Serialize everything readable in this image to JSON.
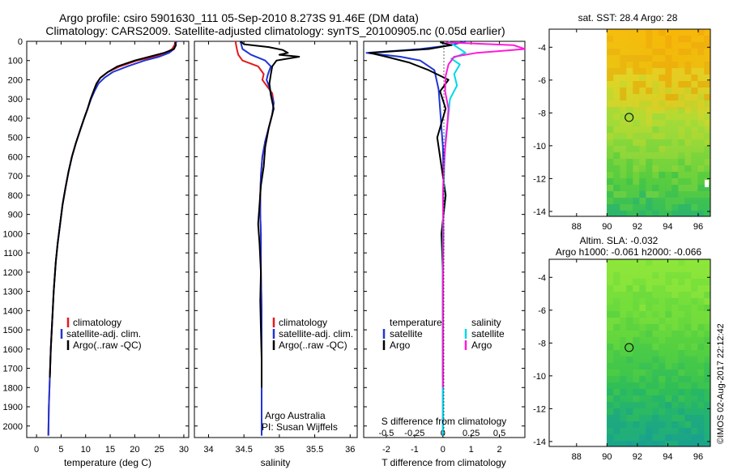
{
  "figure": {
    "title_line1": "Argo profile: csiro 5901630_111 05-Sep-2010 8.273S 91.46E (DM data)",
    "title_line2": "Climatology: CARS2009. Satellite-adjusted climatology: synTS_20100905.nc (0.05d earlier)",
    "credit": "©IMOS 02-Aug-2017 22:12:42"
  },
  "colors": {
    "climatology": "#e41a1c",
    "satellite_adj": "#1f35d6",
    "argo": "#000000",
    "sat_salinity": "#00d8e8",
    "argo_salinity": "#ff1ad9"
  },
  "chart_data": [
    {
      "type": "line",
      "id": "temperature",
      "xlabel": "temperature (deg C)",
      "ylabel": "",
      "xlim": [
        -2,
        31
      ],
      "ylim": [
        2060,
        0
      ],
      "xticks": [
        0,
        5,
        10,
        15,
        20,
        25,
        30
      ],
      "yticks": [
        0,
        100,
        200,
        300,
        400,
        500,
        600,
        700,
        800,
        900,
        1000,
        1100,
        1200,
        1300,
        1400,
        1500,
        1600,
        1700,
        1800,
        1900,
        2000
      ],
      "legend": [
        "climatology",
        "satellite-adj. clim.",
        "Argo(..raw -QC)"
      ],
      "legend_position": "lower-center",
      "series": [
        {
          "name": "climatology",
          "color_key": "climatology",
          "x": [
            28.3,
            28.1,
            27.6,
            26.5,
            24.0,
            20.5,
            17.0,
            14.5,
            13.0,
            12.2,
            11.6,
            11.0,
            10.4,
            9.7,
            8.9,
            8.0,
            7.2,
            6.5,
            5.9,
            5.3,
            4.8,
            4.3,
            3.9,
            3.5,
            3.2,
            2.9,
            2.7,
            2.5,
            2.4
          ],
          "y": [
            0,
            20,
            40,
            60,
            80,
            100,
            130,
            160,
            190,
            220,
            260,
            300,
            350,
            400,
            460,
            530,
            600,
            680,
            760,
            850,
            950,
            1050,
            1150,
            1300,
            1450,
            1600,
            1750,
            1900,
            2050
          ]
        },
        {
          "name": "satellite-adj. clim.",
          "color_key": "satellite_adj",
          "x": [
            28.5,
            28.3,
            28.0,
            27.0,
            25.0,
            22.0,
            18.5,
            15.5,
            13.8,
            12.6,
            11.8,
            11.1,
            10.4,
            9.7,
            8.9,
            8.0,
            7.2,
            6.5,
            5.9,
            5.3,
            4.8,
            4.3,
            3.9,
            3.5,
            3.2,
            2.9,
            2.7,
            2.5,
            2.4
          ],
          "y": [
            0,
            20,
            40,
            60,
            80,
            100,
            130,
            160,
            190,
            220,
            260,
            300,
            350,
            400,
            460,
            530,
            600,
            680,
            760,
            850,
            950,
            1050,
            1150,
            1300,
            1450,
            1600,
            1750,
            1900,
            2050
          ]
        },
        {
          "name": "Argo(..raw -QC)",
          "color_key": "argo",
          "x": [
            28.2,
            28.4,
            28.0,
            26.0,
            23.0,
            20.0,
            16.5,
            14.5,
            13.0,
            12.2,
            11.6,
            11.0,
            10.4,
            9.7,
            8.9,
            8.0,
            7.2,
            6.5,
            5.9,
            5.3,
            4.8,
            4.3,
            3.9,
            3.5,
            3.2,
            2.9,
            2.7
          ],
          "y": [
            5,
            20,
            40,
            60,
            80,
            100,
            130,
            160,
            190,
            220,
            260,
            300,
            350,
            400,
            460,
            530,
            600,
            680,
            760,
            850,
            950,
            1050,
            1150,
            1300,
            1450,
            1600,
            1750
          ]
        }
      ]
    },
    {
      "type": "line",
      "id": "salinity",
      "xlabel": "salinity",
      "xlim": [
        33.8,
        36.1
      ],
      "ylim": [
        2060,
        0
      ],
      "xticks": [
        34,
        34.5,
        35,
        35.5,
        36
      ],
      "yticks": [
        0,
        100,
        200,
        300,
        400,
        500,
        600,
        700,
        800,
        900,
        1000,
        1100,
        1200,
        1300,
        1400,
        1500,
        1600,
        1700,
        1800,
        1900,
        2000
      ],
      "legend": [
        "climatology",
        "satellite-adj. clim.",
        "Argo(..raw -QC)"
      ],
      "legend_position": "lower-right",
      "annotations": [
        "Argo Australia",
        "PI: Susan Wijffels"
      ],
      "series": [
        {
          "name": "climatology",
          "color_key": "climatology",
          "x": [
            34.38,
            34.4,
            34.42,
            34.48,
            34.7,
            34.78,
            34.76,
            34.82,
            34.9,
            34.92,
            34.9,
            34.85,
            34.8,
            34.76,
            34.74,
            34.73,
            34.73,
            34.74,
            34.74,
            34.75,
            34.75,
            34.75,
            34.75
          ],
          "y": [
            0,
            40,
            70,
            100,
            130,
            170,
            200,
            230,
            270,
            320,
            380,
            450,
            520,
            600,
            700,
            800,
            900,
            1000,
            1200,
            1400,
            1600,
            1800,
            2050
          ]
        },
        {
          "name": "satellite-adj. clim.",
          "color_key": "satellite_adj",
          "x": [
            34.45,
            34.48,
            34.6,
            34.8,
            34.88,
            34.84,
            34.82,
            34.85,
            34.88,
            34.92,
            34.9,
            34.85,
            34.8,
            34.76,
            34.74,
            34.73,
            34.73,
            34.74,
            34.74,
            34.75,
            34.75,
            34.75,
            34.75
          ],
          "y": [
            0,
            40,
            70,
            100,
            130,
            170,
            200,
            230,
            270,
            320,
            380,
            450,
            520,
            600,
            700,
            800,
            900,
            1000,
            1200,
            1400,
            1600,
            1800,
            2050
          ]
        },
        {
          "name": "Argo(..raw -QC)",
          "color_key": "argo",
          "x": [
            34.45,
            34.5,
            34.85,
            35.05,
            35.12,
            35.0,
            35.28,
            34.96,
            34.9,
            34.88,
            34.86,
            34.88,
            34.92,
            34.85,
            34.8,
            34.78,
            34.74,
            34.72,
            34.7,
            34.72,
            34.74,
            34.73,
            34.74,
            34.75,
            34.75
          ],
          "y": [
            0,
            15,
            30,
            45,
            60,
            70,
            80,
            100,
            130,
            170,
            220,
            280,
            350,
            450,
            550,
            650,
            750,
            850,
            950,
            1050,
            1200,
            1350,
            1500,
            1650,
            1800
          ]
        }
      ]
    },
    {
      "type": "line",
      "id": "difference",
      "xlabel": "T difference from climatology",
      "xlabel_top": "S difference from climatology",
      "xlim": [
        -2.8,
        2.9
      ],
      "ylim": [
        2060,
        0
      ],
      "xticks": [
        -2,
        -1,
        0,
        1,
        2
      ],
      "xticks_s": [
        "-0.5",
        "-0.25",
        "0",
        "0.25",
        "0.5"
      ],
      "xticks_s_pos": [
        -2,
        -1,
        0,
        1,
        2
      ],
      "yticks": [
        0,
        100,
        200,
        300,
        400,
        500,
        600,
        700,
        800,
        900,
        1000,
        1100,
        1200,
        1300,
        1400,
        1500,
        1600,
        1700,
        1800,
        1900,
        2000
      ],
      "legend_left_title": "temperature",
      "legend_left": [
        "satellite",
        "Argo"
      ],
      "legend_right_title": "salinity",
      "legend_right": [
        "satellite",
        "Argo"
      ],
      "series": [
        {
          "name": "temperature satellite",
          "color_key": "satellite_adj",
          "x": [
            0.8,
            0.3,
            -0.8,
            -2.7,
            -1.5,
            -0.8,
            -0.3,
            -0.15,
            -0.1,
            -0.05,
            0.0,
            0.02,
            0.01,
            0.0,
            0.0,
            0.0,
            0.0,
            0.0
          ],
          "y": [
            0,
            20,
            40,
            60,
            80,
            100,
            150,
            250,
            350,
            450,
            550,
            700,
            900,
            1100,
            1300,
            1500,
            1800,
            2050
          ]
        },
        {
          "name": "temperature Argo",
          "color_key": "argo",
          "x": [
            -0.1,
            0.3,
            -0.5,
            -2.6,
            -2.0,
            -1.2,
            -0.5,
            0.2,
            -0.1,
            0.1,
            -0.2,
            -0.05,
            0.1,
            -0.05,
            0.0,
            0.0,
            0.0
          ],
          "y": [
            5,
            20,
            40,
            60,
            80,
            110,
            150,
            200,
            260,
            350,
            500,
            650,
            800,
            1000,
            1200,
            1500,
            1750
          ]
        },
        {
          "name": "salinity satellite",
          "color_key": "sat_salinity",
          "x": [
            0.2,
            0.5,
            0.8,
            0.3,
            0.6,
            0.4,
            0.5,
            0.25,
            0.2,
            0.1,
            0.05,
            0.02,
            0.0,
            0.0,
            0.0
          ],
          "y": [
            0,
            30,
            60,
            90,
            120,
            170,
            230,
            300,
            380,
            500,
            650,
            800,
            1000,
            1300,
            2050
          ]
        },
        {
          "name": "salinity Argo",
          "color_key": "argo_salinity",
          "x": [
            0.1,
            2.5,
            2.9,
            1.2,
            0.4,
            0.2,
            0.1,
            0.08,
            0.2,
            0.15,
            0.05,
            0.0,
            0.02,
            0.0,
            0.0
          ],
          "y": [
            5,
            20,
            40,
            60,
            80,
            120,
            180,
            260,
            350,
            450,
            600,
            800,
            1000,
            1300,
            1800
          ]
        }
      ]
    },
    {
      "type": "heatmap",
      "id": "sst_map",
      "title": "sat. SST: 28.4  Argo: 28",
      "xlim": [
        86.2,
        96.8
      ],
      "ylim": [
        -14.3,
        -2.9
      ],
      "xticks": [
        88,
        90,
        92,
        94,
        96
      ],
      "yticks": [
        -4,
        -6,
        -8,
        -10,
        -12,
        -14
      ],
      "data_xmin": 90,
      "argo_position": {
        "lon": 91.46,
        "lat": -8.273
      }
    },
    {
      "type": "heatmap",
      "id": "sla_map",
      "title_line1": "Altim. SLA: -0.032",
      "title_line2": "Argo h1000: -0.061 h2000: -0.066",
      "xlim": [
        86.2,
        96.8
      ],
      "ylim": [
        -14.3,
        -2.9
      ],
      "xticks": [
        88,
        90,
        92,
        94,
        96
      ],
      "yticks": [
        -4,
        -6,
        -8,
        -10,
        -12,
        -14
      ],
      "data_xmin": 90,
      "argo_position": {
        "lon": 91.46,
        "lat": -8.273
      }
    }
  ]
}
